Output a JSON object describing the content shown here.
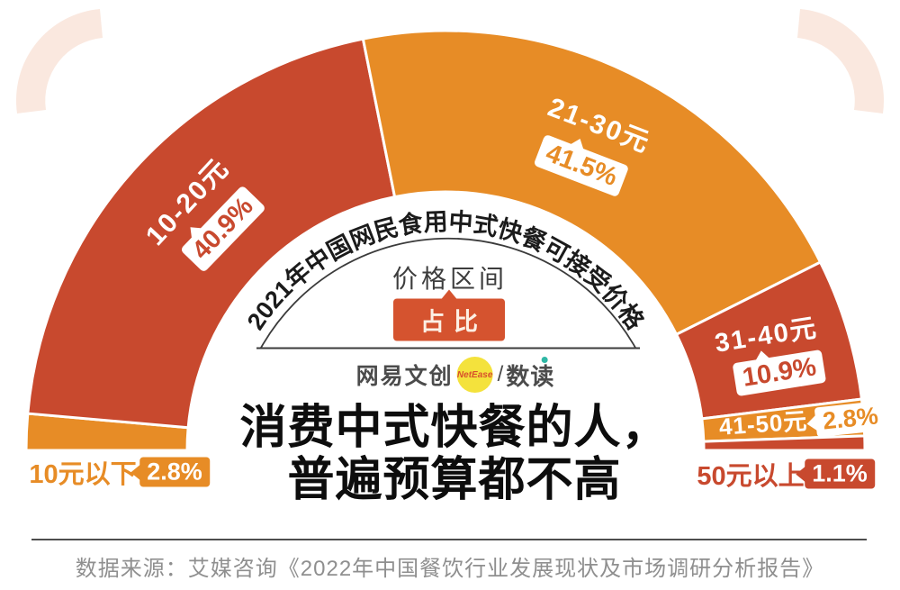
{
  "theme": {
    "red": "#C8492E",
    "orange": "#E78C26",
    "center_badge_bg": "#D5532F",
    "decor_arc": "#FAE8DF",
    "headline_color": "#0D0D0D",
    "muted_text": "#8F8F8F"
  },
  "chart_data": {
    "type": "pie",
    "variant": "half-donut",
    "title_arc": "2021年中国网民食用中式快餐可接受价格",
    "center_label": "价格区间",
    "center_badge": "占比",
    "unit": "%",
    "segments": [
      {
        "label": "10元以下",
        "value": 2.8,
        "display": "2.8%",
        "color": "#E78C26"
      },
      {
        "label": "10-20元",
        "value": 40.9,
        "display": "40.9%",
        "color": "#C8492E"
      },
      {
        "label": "21-30元",
        "value": 41.5,
        "display": "41.5%",
        "color": "#E78C26"
      },
      {
        "label": "31-40元",
        "value": 10.9,
        "display": "10.9%",
        "color": "#C8492E"
      },
      {
        "label": "41-50元",
        "value": 2.8,
        "display": "2.8%",
        "color": "#E78C26"
      },
      {
        "label": "50元以上",
        "value": 1.1,
        "display": "1.1%",
        "color": "#C8492E"
      }
    ]
  },
  "headline": {
    "line1": "消费中式快餐的人，",
    "line2": "普遍预算都不高"
  },
  "logo": {
    "brand": "网易文创",
    "badge": "NetEase",
    "separator": "/",
    "product": "数读"
  },
  "footer": {
    "source": "数据来源：艾媒咨询《2022年中国餐饮行业发展现状及市场调研分析报告》"
  }
}
